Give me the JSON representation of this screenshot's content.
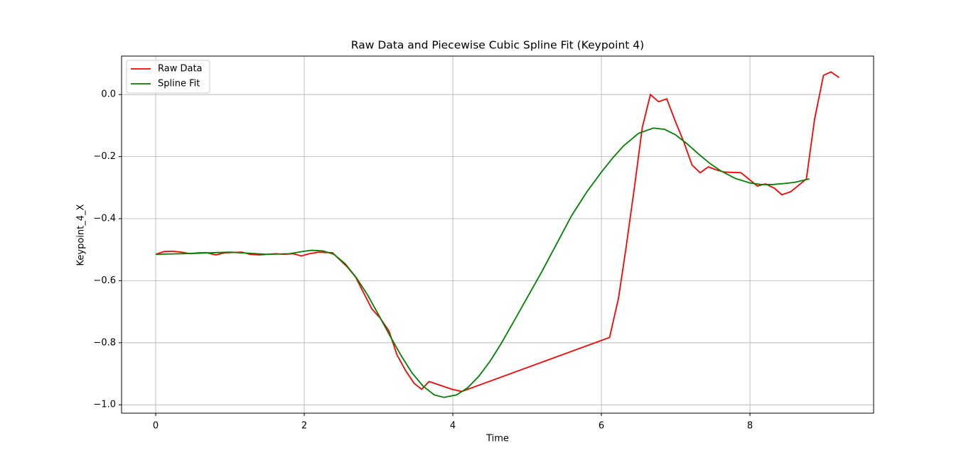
{
  "chart_data": {
    "type": "line",
    "title": "Raw Data and Piecewise Cubic Spline Fit (Keypoint 4)",
    "xlabel": "Time",
    "ylabel": "Keypoint_4_X",
    "xlim": [
      -0.46,
      9.665
    ],
    "ylim": [
      -1.027,
      0.124
    ],
    "xticks": [
      0,
      2,
      4,
      6,
      8
    ],
    "yticks": [
      {
        "value": -1.0,
        "label": "−1.0"
      },
      {
        "value": -0.8,
        "label": "−0.8"
      },
      {
        "value": -0.6,
        "label": "−0.6"
      },
      {
        "value": -0.4,
        "label": "−0.4"
      },
      {
        "value": -0.2,
        "label": "−0.2"
      },
      {
        "value": 0.0,
        "label": "0.0"
      }
    ],
    "grid": true,
    "legend": "upper left",
    "series": [
      {
        "name": "Raw Data",
        "color": "#ff0000",
        "x": [
          0,
          0.115,
          0.23,
          0.345,
          0.46,
          0.575,
          0.69,
          0.81,
          0.93,
          1.16,
          1.27,
          1.39,
          1.62,
          1.73,
          1.85,
          1.96,
          2.07,
          2.19,
          2.38,
          2.58,
          2.69,
          2.91,
          3.02,
          3.14,
          3.25,
          3.37,
          3.48,
          3.58,
          3.68,
          3.99,
          4.12,
          6.11,
          6.23,
          6.33,
          6.45,
          6.55,
          6.66,
          6.77,
          6.88,
          7.0,
          7.11,
          7.22,
          7.33,
          7.44,
          7.55,
          7.66,
          7.88,
          8.1,
          8.21,
          8.33,
          8.43,
          8.55,
          8.76,
          8.87,
          8.99,
          9.09,
          9.2
        ],
        "values": [
          -0.515,
          -0.506,
          -0.505,
          -0.508,
          -0.513,
          -0.51,
          -0.51,
          -0.517,
          -0.51,
          -0.508,
          -0.515,
          -0.517,
          -0.513,
          -0.515,
          -0.513,
          -0.52,
          -0.513,
          -0.508,
          -0.51,
          -0.556,
          -0.588,
          -0.691,
          -0.72,
          -0.762,
          -0.84,
          -0.892,
          -0.931,
          -0.95,
          -0.925,
          -0.95,
          -0.957,
          -0.783,
          -0.657,
          -0.497,
          -0.29,
          -0.107,
          0.0,
          -0.023,
          -0.014,
          -0.089,
          -0.153,
          -0.227,
          -0.252,
          -0.233,
          -0.243,
          -0.25,
          -0.252,
          -0.295,
          -0.288,
          -0.302,
          -0.323,
          -0.313,
          -0.272,
          -0.08,
          0.062,
          0.073,
          0.055
        ]
      },
      {
        "name": "Spline Fit",
        "color": "#008000",
        "x": [
          0,
          0.5,
          1.0,
          1.5,
          1.8,
          2.0,
          2.1,
          2.25,
          2.4,
          2.55,
          2.7,
          2.85,
          3.0,
          3.15,
          3.3,
          3.45,
          3.6,
          3.75,
          3.88,
          4.05,
          4.2,
          4.35,
          4.5,
          4.65,
          4.8,
          5.0,
          5.2,
          5.4,
          5.6,
          5.8,
          6.0,
          6.15,
          6.3,
          6.5,
          6.7,
          6.85,
          7.0,
          7.15,
          7.3,
          7.45,
          7.6,
          7.8,
          8.0,
          8.15,
          8.3,
          8.45,
          8.6,
          8.8
        ],
        "values": [
          -0.515,
          -0.512,
          -0.508,
          -0.515,
          -0.513,
          -0.505,
          -0.502,
          -0.504,
          -0.515,
          -0.545,
          -0.59,
          -0.645,
          -0.71,
          -0.776,
          -0.84,
          -0.897,
          -0.94,
          -0.968,
          -0.976,
          -0.968,
          -0.945,
          -0.908,
          -0.86,
          -0.803,
          -0.74,
          -0.655,
          -0.57,
          -0.48,
          -0.39,
          -0.315,
          -0.25,
          -0.205,
          -0.165,
          -0.125,
          -0.108,
          -0.112,
          -0.13,
          -0.158,
          -0.19,
          -0.22,
          -0.245,
          -0.27,
          -0.285,
          -0.29,
          -0.29,
          -0.287,
          -0.283,
          -0.272
        ]
      }
    ]
  }
}
